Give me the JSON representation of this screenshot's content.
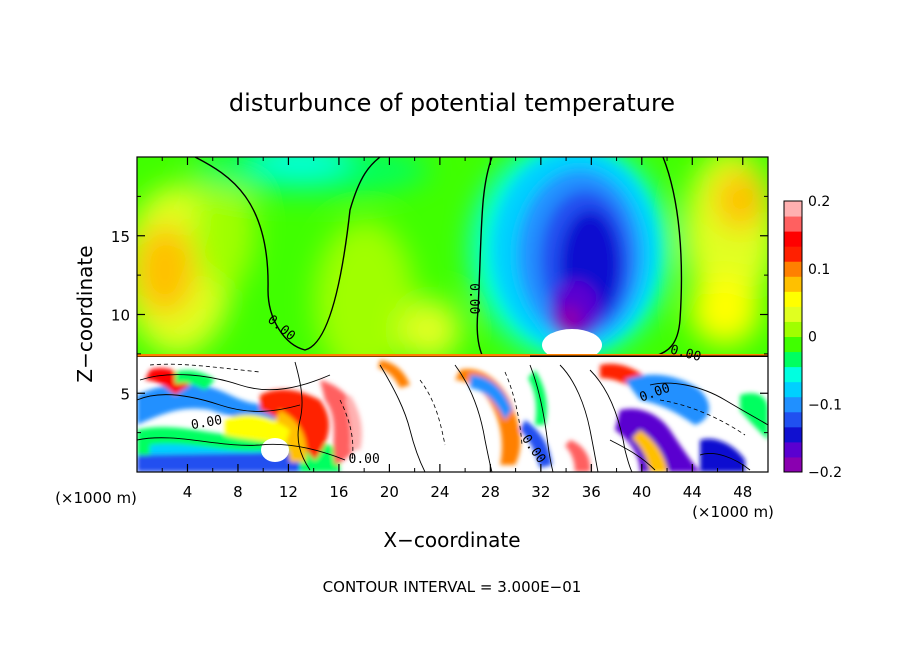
{
  "chart_data": {
    "type": "heatmap",
    "title": "disturbunce of potential temperature",
    "xlabel": "X−coordinate",
    "ylabel": "Z−coordinate",
    "x_unit": "(×1000 m)",
    "y_unit": "(×1000 m)",
    "xlim": [
      0,
      50
    ],
    "ylim": [
      0,
      20
    ],
    "x_ticks": [
      4,
      8,
      12,
      16,
      20,
      24,
      28,
      32,
      36,
      40,
      44,
      48
    ],
    "y_ticks": [
      5,
      10,
      15
    ],
    "colorbar": {
      "range": [
        -0.2,
        0.2
      ],
      "ticks": [
        {
          "value": 0.2,
          "label": "0.2"
        },
        {
          "value": 0.1,
          "label": "0.1"
        },
        {
          "value": 0,
          "label": "0"
        },
        {
          "value": -0.1,
          "label": "−0.1"
        },
        {
          "value": -0.2,
          "label": "−0.2"
        }
      ],
      "colors": [
        "#8a00b0",
        "#5a00d0",
        "#1010d0",
        "#2050f0",
        "#2090ff",
        "#00d0ff",
        "#00ffe0",
        "#00ff60",
        "#40ff00",
        "#a0ff00",
        "#e0ff20",
        "#ffff00",
        "#ffc000",
        "#ff8000",
        "#ff2000",
        "#ff0000",
        "#ff6060",
        "#ffb0b0"
      ]
    },
    "contour_labels": [
      {
        "text": "0.00",
        "x": 11.5,
        "z": 9.2,
        "angle": 40
      },
      {
        "text": "0.00",
        "x": 26.8,
        "z": 11.0,
        "angle": 90
      },
      {
        "text": "0.00",
        "x": 43.5,
        "z": 7.6,
        "angle": 15
      },
      {
        "text": "0.00",
        "x": 41.0,
        "z": 5.1,
        "angle": -20
      },
      {
        "text": "0.00",
        "x": 5.5,
        "z": 3.2,
        "angle": -10
      },
      {
        "text": "0.00",
        "x": 18.0,
        "z": 0.9,
        "angle": 0
      },
      {
        "text": "0.00",
        "x": 31.5,
        "z": 1.5,
        "angle": 55
      }
    ]
  },
  "footer": {
    "contour_interval": "CONTOUR INTERVAL = 3.000E−01"
  }
}
